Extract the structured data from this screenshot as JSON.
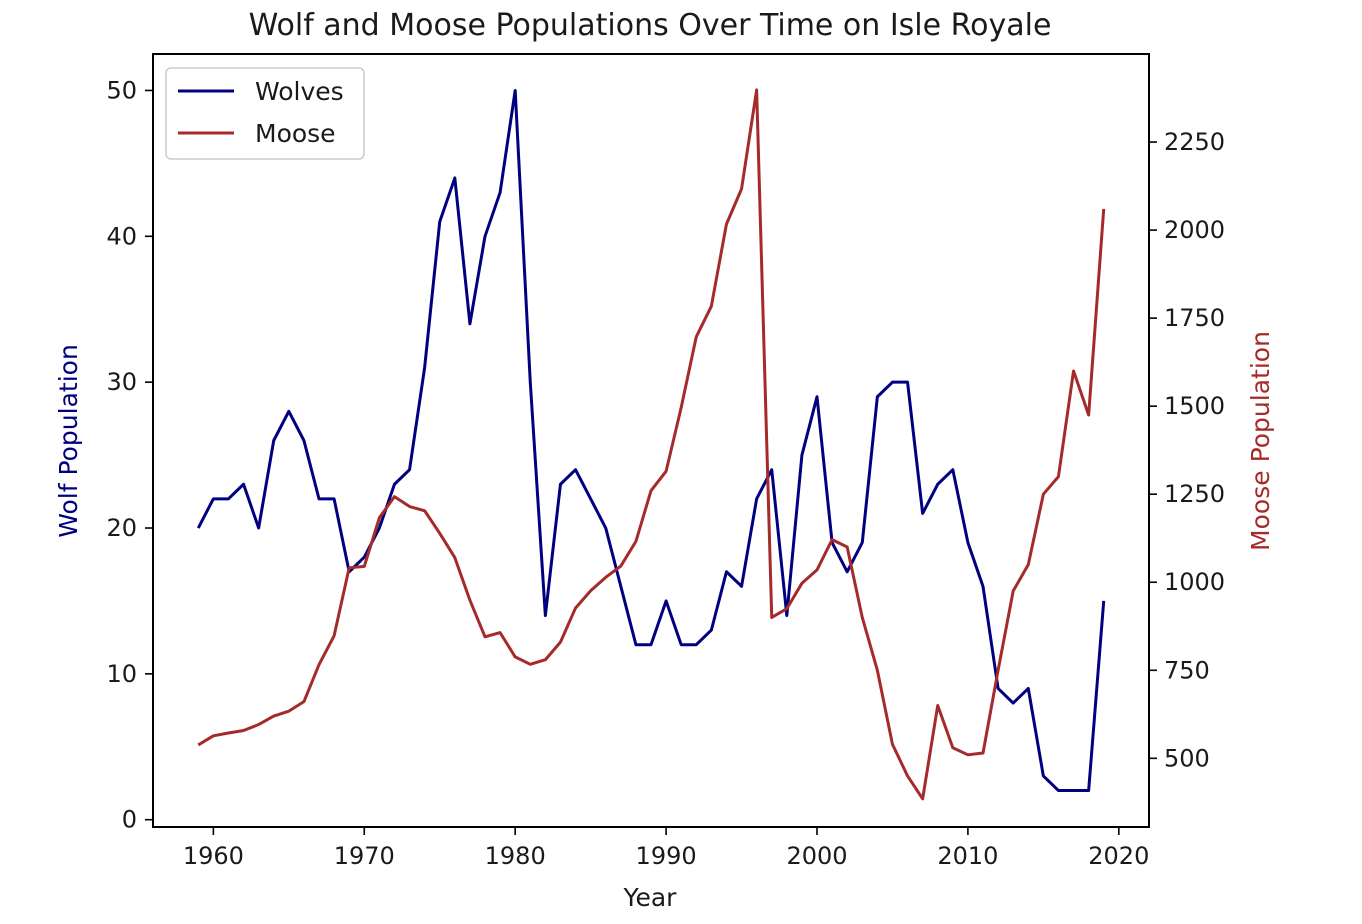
{
  "chart_data": {
    "type": "line",
    "title": "Wolf and Moose Populations Over Time on Isle Royale",
    "xlabel": "Year",
    "ylabel_left": "Wolf Population",
    "ylabel_right": "Moose Population",
    "xlim": [
      1956,
      2022
    ],
    "ylim_left": [
      -0.5,
      52.5
    ],
    "ylim_right": [
      305,
      2500
    ],
    "xticks": [
      1960,
      1970,
      1980,
      1990,
      2000,
      2010,
      2020
    ],
    "yticks_left": [
      0,
      10,
      20,
      30,
      40,
      50
    ],
    "yticks_right": [
      500,
      750,
      1000,
      1250,
      1500,
      1750,
      2000,
      2250
    ],
    "grid": false,
    "legend_position": "top-left",
    "x": [
      1959,
      1960,
      1961,
      1962,
      1963,
      1964,
      1965,
      1966,
      1967,
      1968,
      1969,
      1970,
      1971,
      1972,
      1973,
      1974,
      1975,
      1976,
      1977,
      1978,
      1979,
      1980,
      1981,
      1982,
      1983,
      1984,
      1985,
      1986,
      1987,
      1988,
      1989,
      1990,
      1991,
      1992,
      1993,
      1994,
      1995,
      1996,
      1997,
      1998,
      1999,
      2000,
      2001,
      2002,
      2003,
      2004,
      2005,
      2006,
      2007,
      2008,
      2009,
      2010,
      2011,
      2012,
      2013,
      2014,
      2015,
      2016,
      2017,
      2018,
      2019
    ],
    "series": [
      {
        "name": "Wolves",
        "axis": "left",
        "color": "#000080",
        "values": [
          20,
          22,
          22,
          23,
          20,
          26,
          28,
          26,
          22,
          22,
          17,
          18,
          20,
          23,
          24,
          31,
          41,
          44,
          34,
          40,
          43,
          50,
          30,
          14,
          23,
          24,
          22,
          20,
          16,
          12,
          12,
          15,
          12,
          12,
          13,
          17,
          16,
          22,
          24,
          14,
          25,
          29,
          19,
          17,
          19,
          29,
          30,
          30,
          21,
          23,
          24,
          19,
          16,
          9,
          8,
          9,
          3,
          2,
          2,
          2,
          15
        ]
      },
      {
        "name": "Moose",
        "axis": "right",
        "color": "#a52a2a",
        "values": [
          538,
          564,
          572,
          579,
          596,
          620,
          634,
          661,
          766,
          848,
          1041,
          1045,
          1183,
          1243,
          1215,
          1203,
          1139,
          1070,
          949,
          845,
          857,
          788,
          767,
          780,
          830,
          927,
          976,
          1014,
          1046,
          1116,
          1260,
          1315,
          1496,
          1697,
          1784,
          2017,
          2117,
          2398,
          900,
          925,
          997,
          1035,
          1121,
          1100,
          900,
          750,
          540,
          450,
          385,
          650,
          530,
          510,
          515,
          750,
          975,
          1050,
          1250,
          1300,
          1600,
          1475,
          2060
        ]
      }
    ]
  }
}
